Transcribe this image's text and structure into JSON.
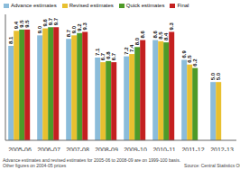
{
  "chart_data": {
    "type": "bar",
    "categories": [
      "2005-06",
      "2006-07",
      "2007-08",
      "2008-09",
      "2009-10",
      "2010-11",
      "2011-12",
      "2012-13"
    ],
    "series": [
      {
        "name": "Advance estimates",
        "color": "#8BBCDA",
        "values": [
          8.1,
          9.0,
          8.7,
          7.1,
          7.2,
          8.6,
          6.9,
          5.0
        ],
        "value_labels": [
          "8.1",
          "9.0",
          "8.7",
          "7.1",
          "7.2",
          "8.6",
          "6.9",
          "5.0"
        ]
      },
      {
        "name": "Revised estimates",
        "color": "#E8C030",
        "values": [
          9.4,
          9.6,
          9.0,
          6.7,
          7.4,
          8.5,
          6.5,
          5.0
        ],
        "value_labels": [
          "9.4",
          "9.6",
          "9.0",
          "6.7",
          "7.4",
          "8.5",
          "6.5",
          "5.0"
        ]
      },
      {
        "name": "Quick estimates",
        "color": "#4E9A28",
        "values": [
          9.5,
          9.7,
          9.2,
          6.8,
          8.0,
          8.4,
          6.2,
          null
        ],
        "value_labels": [
          "9.5",
          "9.7",
          "9.2",
          "6.8",
          "8.0",
          "8.4",
          "6.2",
          null
        ]
      },
      {
        "name": "Final",
        "color": "#C42020",
        "values": [
          9.5,
          9.7,
          9.3,
          6.7,
          8.6,
          9.3,
          null,
          null
        ],
        "value_labels": [
          "9.5",
          "9.7",
          "9.3",
          "6.7",
          "8.6",
          "9.3",
          null,
          null
        ]
      }
    ],
    "ylim": [
      0,
      10.8
    ],
    "data_labels": true,
    "tick_labels": "x",
    "grid": false,
    "legend": "upper left",
    "annotations": [
      "Advance estimates and revised estimates for 2005-06 to 2008-09 are on 1999-100 basis.\nOther figures on 2004-05 prices",
      "Source: Central Statistics Office"
    ]
  }
}
